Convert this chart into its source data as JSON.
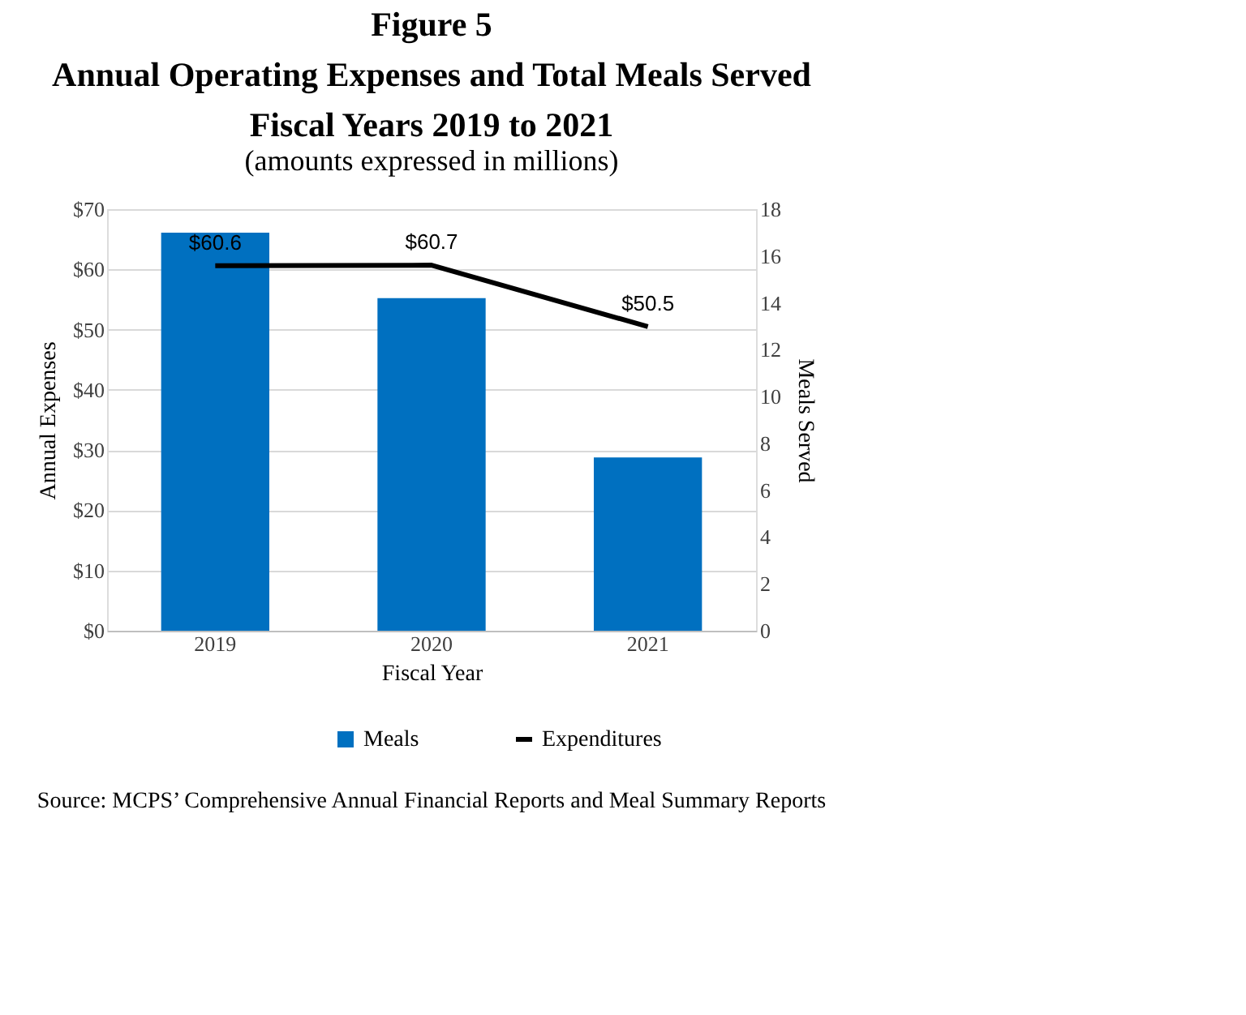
{
  "chart_data": {
    "type": "bar",
    "title": "Figure 5\nAnnual Operating Expenses and Total Meals Served\nFiscal Years 2019 to 2021",
    "subtitle": "(amounts expressed in millions)",
    "xlabel": "Fiscal Year",
    "ylabel": "Annual Expenses",
    "y2label": "Meals Served",
    "categories": [
      "2019",
      "2020",
      "2021"
    ],
    "series": [
      {
        "name": "Meals",
        "type": "bar",
        "axis": "y2",
        "color": "#0070c0",
        "values": [
          17.0,
          14.2,
          7.4
        ]
      },
      {
        "name": "Expenditures",
        "type": "line",
        "color": "#000000",
        "values": [
          60.6,
          60.7,
          50.5
        ],
        "value_labels": [
          "$60.6",
          "$60.7",
          "$50.5"
        ]
      }
    ],
    "ylim": [
      0,
      70
    ],
    "yticks": [
      {
        "value": 0,
        "label": "$0"
      },
      {
        "value": 10,
        "label": "$10"
      },
      {
        "value": 20,
        "label": "$20"
      },
      {
        "value": 30,
        "label": "$30"
      },
      {
        "value": 40,
        "label": "$40"
      },
      {
        "value": 50,
        "label": "$50"
      },
      {
        "value": 60,
        "label": "$60"
      },
      {
        "value": 70,
        "label": "$70"
      }
    ],
    "y2lim": [
      0,
      18
    ],
    "y2ticks": [
      0,
      2,
      4,
      6,
      8,
      10,
      12,
      14,
      16,
      18
    ],
    "grid": "y",
    "legend": "bottom",
    "annotations": [
      "Source:  MCPS’ Comprehensive Annual Financial Reports and Meal Summary Reports"
    ]
  }
}
